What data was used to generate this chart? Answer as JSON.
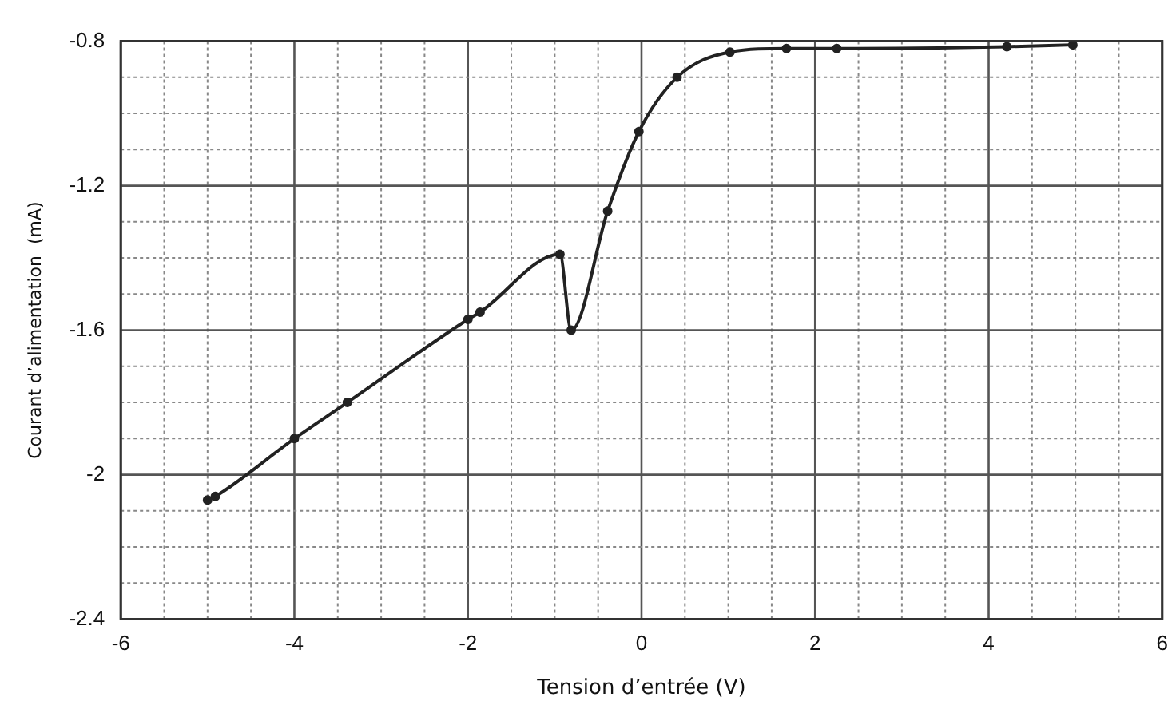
{
  "chart_data": {
    "type": "line",
    "xlabel": "Tension d’entrée (V)",
    "ylabel": "Courant d’alimentation  (mA)",
    "x": [
      -5.0,
      -4.91,
      -4.0,
      -3.39,
      -2.0,
      -1.86,
      -0.94,
      -0.81,
      -0.39,
      -0.03,
      0.41,
      1.02,
      1.67,
      2.25,
      4.21,
      4.97
    ],
    "series": [
      {
        "color": "#222222",
        "values": [
          -2.07,
          -2.06,
          -1.9,
          -1.8,
          -1.57,
          -1.55,
          -1.39,
          -1.6,
          -1.27,
          -1.05,
          -0.9,
          -0.83,
          -0.82,
          -0.82,
          -0.815,
          -0.81
        ]
      }
    ],
    "xlim": [
      -6,
      6
    ],
    "xticks": [
      -6,
      {
        "value": -5.5,
        "label": null
      },
      {
        "value": -5,
        "label": null
      },
      {
        "value": -4.5,
        "label": null
      },
      -4,
      {
        "value": -3.5,
        "label": null
      },
      {
        "value": -3,
        "label": null
      },
      {
        "value": -2.5,
        "label": null
      },
      -2,
      {
        "value": -1.5,
        "label": null
      },
      {
        "value": -1,
        "label": null
      },
      {
        "value": -0.5,
        "label": null
      },
      0,
      {
        "value": 0.5,
        "label": null
      },
      {
        "value": 1,
        "label": null
      },
      {
        "value": 1.5,
        "label": null
      },
      2,
      {
        "value": 2.5,
        "label": null
      },
      {
        "value": 3,
        "label": null
      },
      {
        "value": 3.5,
        "label": null
      },
      4,
      {
        "value": 4.5,
        "label": null
      },
      {
        "value": 5,
        "label": null
      },
      {
        "value": 5.5,
        "label": null
      },
      6
    ],
    "ylim": [
      -2.4,
      -0.8
    ],
    "yticks": [
      -2.4,
      {
        "value": -2.3,
        "label": null
      },
      {
        "value": -2.2,
        "label": null
      },
      {
        "value": -2.1,
        "label": null
      },
      -2,
      {
        "value": -1.9,
        "label": null
      },
      {
        "value": -1.8,
        "label": null
      },
      {
        "value": -1.7,
        "label": null
      },
      -1.6,
      {
        "value": -1.5,
        "label": null
      },
      {
        "value": -1.4,
        "label": null
      },
      {
        "value": -1.3,
        "label": null
      },
      -1.2,
      {
        "value": -1.1,
        "label": null
      },
      {
        "value": -1,
        "label": null
      },
      {
        "value": -0.9,
        "label": null
      },
      -0.8
    ],
    "grid": true,
    "legend": false,
    "marker": "circle",
    "line_style": "solid"
  }
}
